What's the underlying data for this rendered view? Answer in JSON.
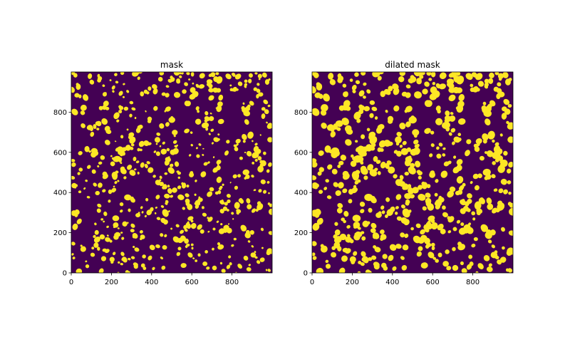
{
  "chart_data": [
    {
      "type": "image",
      "title": "mask",
      "xlim": [
        0,
        1000
      ],
      "ylim": [
        0,
        1000
      ],
      "xticks": [
        0,
        200,
        400,
        600,
        800
      ],
      "yticks": [
        0,
        200,
        400,
        600,
        800
      ],
      "background_color": "#440154",
      "foreground_color": "#fde725",
      "dilated": false
    },
    {
      "type": "image",
      "title": "dilated mask",
      "xlim": [
        0,
        1000
      ],
      "ylim": [
        0,
        1000
      ],
      "xticks": [
        0,
        200,
        400,
        600,
        800
      ],
      "yticks": [
        0,
        200,
        400,
        600,
        800
      ],
      "background_color": "#440154",
      "foreground_color": "#fde725",
      "dilated": true
    }
  ]
}
